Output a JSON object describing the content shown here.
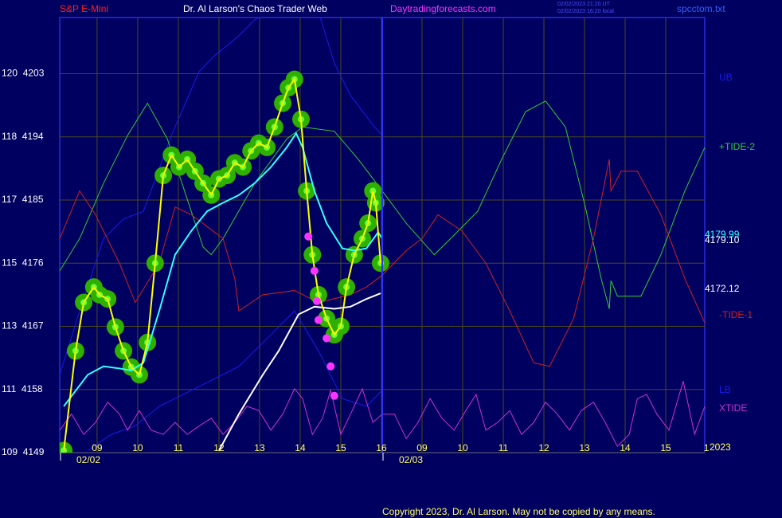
{
  "chart_data": {
    "type": "line",
    "title": "S&P E-Mini",
    "subtitle": "Dr. Al Larson's Chaos Trader Web",
    "website": "Daytradingforecasts.com",
    "timestamps": [
      "02/02/2023 21:20 UT",
      "02/02/2023 16:20 local"
    ],
    "file": "spcctom.txt",
    "copyright": "Copyright 2023, Dr. Al Larson. May not be copied by any means.",
    "date_labels": [
      "02/02",
      "02/03"
    ],
    "year": "2023",
    "grid": true,
    "xlim": [
      0.08,
      15.96
    ],
    "ylim": [
      4149,
      4211
    ],
    "xticks": [
      {
        "value": 1,
        "label": "09"
      },
      {
        "value": 2,
        "label": "10"
      },
      {
        "value": 3,
        "label": "11"
      },
      {
        "value": 4,
        "label": "12"
      },
      {
        "value": 5,
        "label": "13"
      },
      {
        "value": 6,
        "label": "14"
      },
      {
        "value": 7,
        "label": "15"
      },
      {
        "value": 8,
        "label": "16"
      },
      {
        "value": 9,
        "label": "09"
      },
      {
        "value": 10,
        "label": "10"
      },
      {
        "value": 11,
        "label": "11"
      },
      {
        "value": 12,
        "label": "12"
      },
      {
        "value": 13,
        "label": "13"
      },
      {
        "value": 14,
        "label": "14"
      },
      {
        "value": 15,
        "label": "15"
      },
      {
        "value": 16,
        "label": "1"
      }
    ],
    "yticks": [
      {
        "value": 4149,
        "label": "109  4149"
      },
      {
        "value": 4158,
        "label": "111  4158"
      },
      {
        "value": 4167,
        "label": "113  4167"
      },
      {
        "value": 4176,
        "label": "115  4176"
      },
      {
        "value": 4185,
        "label": "117  4185"
      },
      {
        "value": 4194,
        "label": "118  4194"
      },
      {
        "value": 4203,
        "label": "120  4203"
      }
    ],
    "end_labels": [
      {
        "text": "4179.99",
        "color": "#33ffff"
      },
      {
        "text": "4179.10",
        "color": "#ffffff"
      },
      {
        "text": "4172.12",
        "color": "#ffffff"
      }
    ],
    "series": [
      {
        "name": "UB",
        "color": "#1a1aee",
        "style": "line",
        "x": [
          0.08,
          0.57,
          1.16,
          1.65,
          2.14,
          2.83,
          3.51,
          3.9,
          4.49,
          4.88,
          5.28,
          6.45,
          6.84,
          7.24,
          7.83,
          8.02
        ],
        "values": [
          4160.1,
          4169.2,
          4179.5,
          4182.3,
          4183.4,
          4194.2,
          4203.3,
          4205.6,
          4208.4,
          4210.7,
          4211.8,
          4211.8,
          4204.5,
          4199.9,
          4195.4,
          4194.2
        ]
      },
      {
        "name": "LB",
        "color": "#1a1aee",
        "style": "line",
        "x": [
          0.77,
          1.35,
          1.94,
          2.53,
          3.12,
          3.71,
          4.49,
          5.28,
          5.86,
          6.45,
          7.04,
          7.63,
          8.02
        ],
        "values": [
          4149.3,
          4151.6,
          4152.8,
          4155.6,
          4157.3,
          4159.0,
          4161.3,
          4165.8,
          4169.2,
          4163.5,
          4156.7,
          4155.6,
          4157.9
        ]
      },
      {
        "name": "+TIDE-2",
        "color": "#33cc33",
        "style": "line",
        "x": [
          0.08,
          0.57,
          1.16,
          1.75,
          2.24,
          2.73,
          3.22,
          3.61,
          3.81,
          4.1,
          4.88,
          5.67,
          6.06,
          6.84,
          7.43,
          8.02,
          8.61,
          9.3,
          9.79,
          10.37,
          10.96,
          11.55,
          12.04,
          12.53,
          13.02,
          13.41,
          13.61,
          13.65,
          13.81,
          14.39,
          14.88,
          15.47,
          15.96
        ],
        "values": [
          4174.9,
          4179.5,
          4187.4,
          4194.2,
          4198.8,
          4193.7,
          4185.1,
          4178.3,
          4177.2,
          4179.5,
          4187.4,
          4193.7,
          4195.4,
          4194.8,
          4190.8,
          4186.3,
          4181.7,
          4177.2,
          4180.0,
          4183.4,
          4190.8,
          4197.6,
          4199.1,
          4195.4,
          4184.0,
          4173.8,
          4169.5,
          4173.5,
          4171.3,
          4171.3,
          4177.2,
          4186.3,
          4192.5
        ]
      },
      {
        "name": "-TIDE-1",
        "color": "#cc2222",
        "style": "line",
        "x": [
          0.08,
          0.57,
          0.96,
          1.55,
          1.94,
          2.53,
          2.92,
          3.32,
          3.71,
          4.1,
          4.39,
          4.49,
          5.08,
          5.86,
          6.45,
          7.24,
          7.63,
          8.02,
          8.61,
          9.0,
          9.39,
          9.98,
          10.57,
          11.16,
          11.75,
          12.14,
          12.73,
          13.22,
          13.61,
          13.65,
          13.9,
          14.3,
          14.88,
          15.47,
          15.96
        ],
        "values": [
          4179.5,
          4186.3,
          4182.9,
          4176.0,
          4170.4,
          4176.0,
          4184.0,
          4182.9,
          4181.2,
          4179.5,
          4173.8,
          4169.2,
          4171.5,
          4172.1,
          4170.4,
          4171.5,
          4172.6,
          4174.3,
          4177.8,
          4179.5,
          4182.9,
          4180.6,
          4176.0,
          4169.2,
          4161.8,
          4161.3,
          4168.1,
          4179.5,
          4190.8,
          4186.3,
          4189.1,
          4189.1,
          4182.9,
          4173.8,
          4167.5
        ]
      },
      {
        "name": "XTIDE",
        "color": "#cc33cc",
        "style": "line",
        "x": [
          0.08,
          0.37,
          0.67,
          0.96,
          1.26,
          1.55,
          1.75,
          2.04,
          2.33,
          2.63,
          2.92,
          3.22,
          3.51,
          3.81,
          4.1,
          4.39,
          4.69,
          4.98,
          5.28,
          5.57,
          5.86,
          6.06,
          6.3,
          6.55,
          6.75,
          7.0,
          7.24,
          7.53,
          7.79,
          8.02,
          8.32,
          8.61,
          8.9,
          9.2,
          9.49,
          9.79,
          10.08,
          10.33,
          10.57,
          10.86,
          11.16,
          11.45,
          11.75,
          12.04,
          12.33,
          12.63,
          12.92,
          13.22,
          13.51,
          13.81,
          14.1,
          14.3,
          14.53,
          14.78,
          15.08,
          15.43,
          15.71,
          15.96
        ],
        "values": [
          4152.2,
          4154.5,
          4151.6,
          4153.3,
          4156.2,
          4154.5,
          4152.2,
          4155.0,
          4152.2,
          4151.6,
          4153.3,
          4151.6,
          4152.8,
          4153.9,
          4151.6,
          4153.3,
          4155.6,
          4155.0,
          4152.2,
          4154.5,
          4158.1,
          4156.7,
          4151.6,
          4153.9,
          4157.9,
          4151.6,
          4154.5,
          4158.1,
          4153.3,
          4154.5,
          4154.5,
          4151.0,
          4153.3,
          4156.7,
          4153.9,
          4152.2,
          4155.0,
          4157.3,
          4152.2,
          4153.3,
          4155.0,
          4151.6,
          4153.3,
          4156.2,
          4154.5,
          4152.2,
          4155.0,
          4156.2,
          4153.3,
          4149.9,
          4151.6,
          4156.7,
          4157.3,
          4154.5,
          4152.2,
          4159.2,
          4151.6,
          4155.6
        ]
      },
      {
        "color": "#2fb000",
        "style": "bubbles",
        "x": [
          0.18,
          0.47,
          0.67,
          0.92,
          1.06,
          1.26,
          1.45,
          1.65,
          1.84,
          2.04,
          2.24,
          2.43,
          2.63,
          2.83,
          3.02,
          3.22,
          3.41,
          3.61,
          3.81,
          4.0,
          4.2,
          4.39,
          4.59,
          4.79,
          4.98,
          5.18,
          5.37,
          5.57,
          5.71,
          5.86,
          6.02,
          6.16,
          6.3,
          6.45,
          6.65,
          6.84,
          7.0,
          7.14,
          7.33,
          7.53,
          7.67,
          7.79,
          7.86,
          7.98
        ],
        "values": [
          4149.3,
          4163.5,
          4170.4,
          4172.6,
          4171.5,
          4170.9,
          4166.9,
          4163.5,
          4161.2,
          4160.1,
          4164.7,
          4176.0,
          4188.5,
          4191.4,
          4189.7,
          4190.8,
          4189.1,
          4187.4,
          4185.7,
          4188.0,
          4188.5,
          4190.3,
          4189.7,
          4192.0,
          4193.1,
          4192.5,
          4195.4,
          4198.8,
          4201.0,
          4202.2,
          4196.5,
          4186.3,
          4177.2,
          4171.5,
          4168.1,
          4165.8,
          4167.0,
          4172.6,
          4177.2,
          4179.5,
          4181.7,
          4186.3,
          4184.6,
          4176.0
        ]
      },
      {
        "color": "#ffffff",
        "style": "line",
        "x": [
          4.0,
          4.49,
          5.08,
          5.47,
          5.96,
          6.35,
          6.84,
          7.24,
          7.63,
          7.98
        ],
        "values": [
          4149.3,
          4154.5,
          4160.1,
          4163.5,
          4168.7,
          4169.8,
          4169.5,
          4169.8,
          4170.9,
          4171.7
        ]
      },
      {
        "color": "#33ffff",
        "style": "line",
        "x": [
          0.18,
          0.77,
          1.16,
          1.55,
          1.84,
          2.14,
          2.53,
          2.92,
          3.32,
          3.71,
          4.1,
          4.49,
          4.88,
          5.28,
          5.67,
          5.9,
          6.06,
          6.35,
          6.65,
          7.04,
          7.33,
          7.63,
          7.92,
          8.02
        ],
        "values": [
          4155.6,
          4160.1,
          4161.3,
          4161.0,
          4160.7,
          4161.8,
          4169.2,
          4177.2,
          4180.6,
          4183.4,
          4184.6,
          4185.7,
          4187.4,
          4189.7,
          4192.5,
          4194.5,
          4192.5,
          4186.3,
          4181.7,
          4178.1,
          4177.8,
          4178.1,
          4180.4,
          4179.5
        ]
      },
      {
        "color": "#ffff00",
        "style": "line",
        "x": [
          0.18,
          0.47,
          0.67,
          0.92,
          1.06,
          1.26,
          1.45,
          1.65,
          1.84,
          2.04,
          2.24,
          2.43,
          2.63,
          2.83,
          3.02,
          3.22,
          3.41,
          3.61,
          3.81,
          4.0,
          4.2,
          4.39,
          4.59,
          4.79,
          4.98,
          5.18,
          5.37,
          5.57,
          5.71,
          5.86,
          6.02,
          6.16,
          6.3,
          6.45,
          6.65,
          6.84,
          7.0,
          7.14,
          7.33,
          7.53,
          7.67,
          7.79,
          7.86,
          7.98
        ],
        "values": [
          4149.3,
          4163.5,
          4170.4,
          4172.6,
          4171.5,
          4170.9,
          4166.9,
          4163.5,
          4161.2,
          4160.1,
          4164.7,
          4176.0,
          4188.5,
          4191.4,
          4189.7,
          4190.8,
          4189.1,
          4187.4,
          4185.7,
          4188.0,
          4188.5,
          4190.3,
          4189.7,
          4192.0,
          4193.1,
          4192.5,
          4195.4,
          4198.8,
          4201.0,
          4202.2,
          4196.5,
          4186.3,
          4177.2,
          4171.5,
          4168.1,
          4165.8,
          4167.0,
          4172.6,
          4177.2,
          4179.5,
          4181.7,
          4186.3,
          4184.6,
          4176.0
        ]
      },
      {
        "color": "#ff33ff",
        "style": "dots",
        "x": [
          6.2,
          6.35,
          6.41,
          6.45,
          6.65,
          6.75,
          6.84
        ],
        "values": [
          4179.8,
          4174.9,
          4170.6,
          4167.9,
          4165.3,
          4161.3,
          4157.1
        ]
      }
    ]
  }
}
